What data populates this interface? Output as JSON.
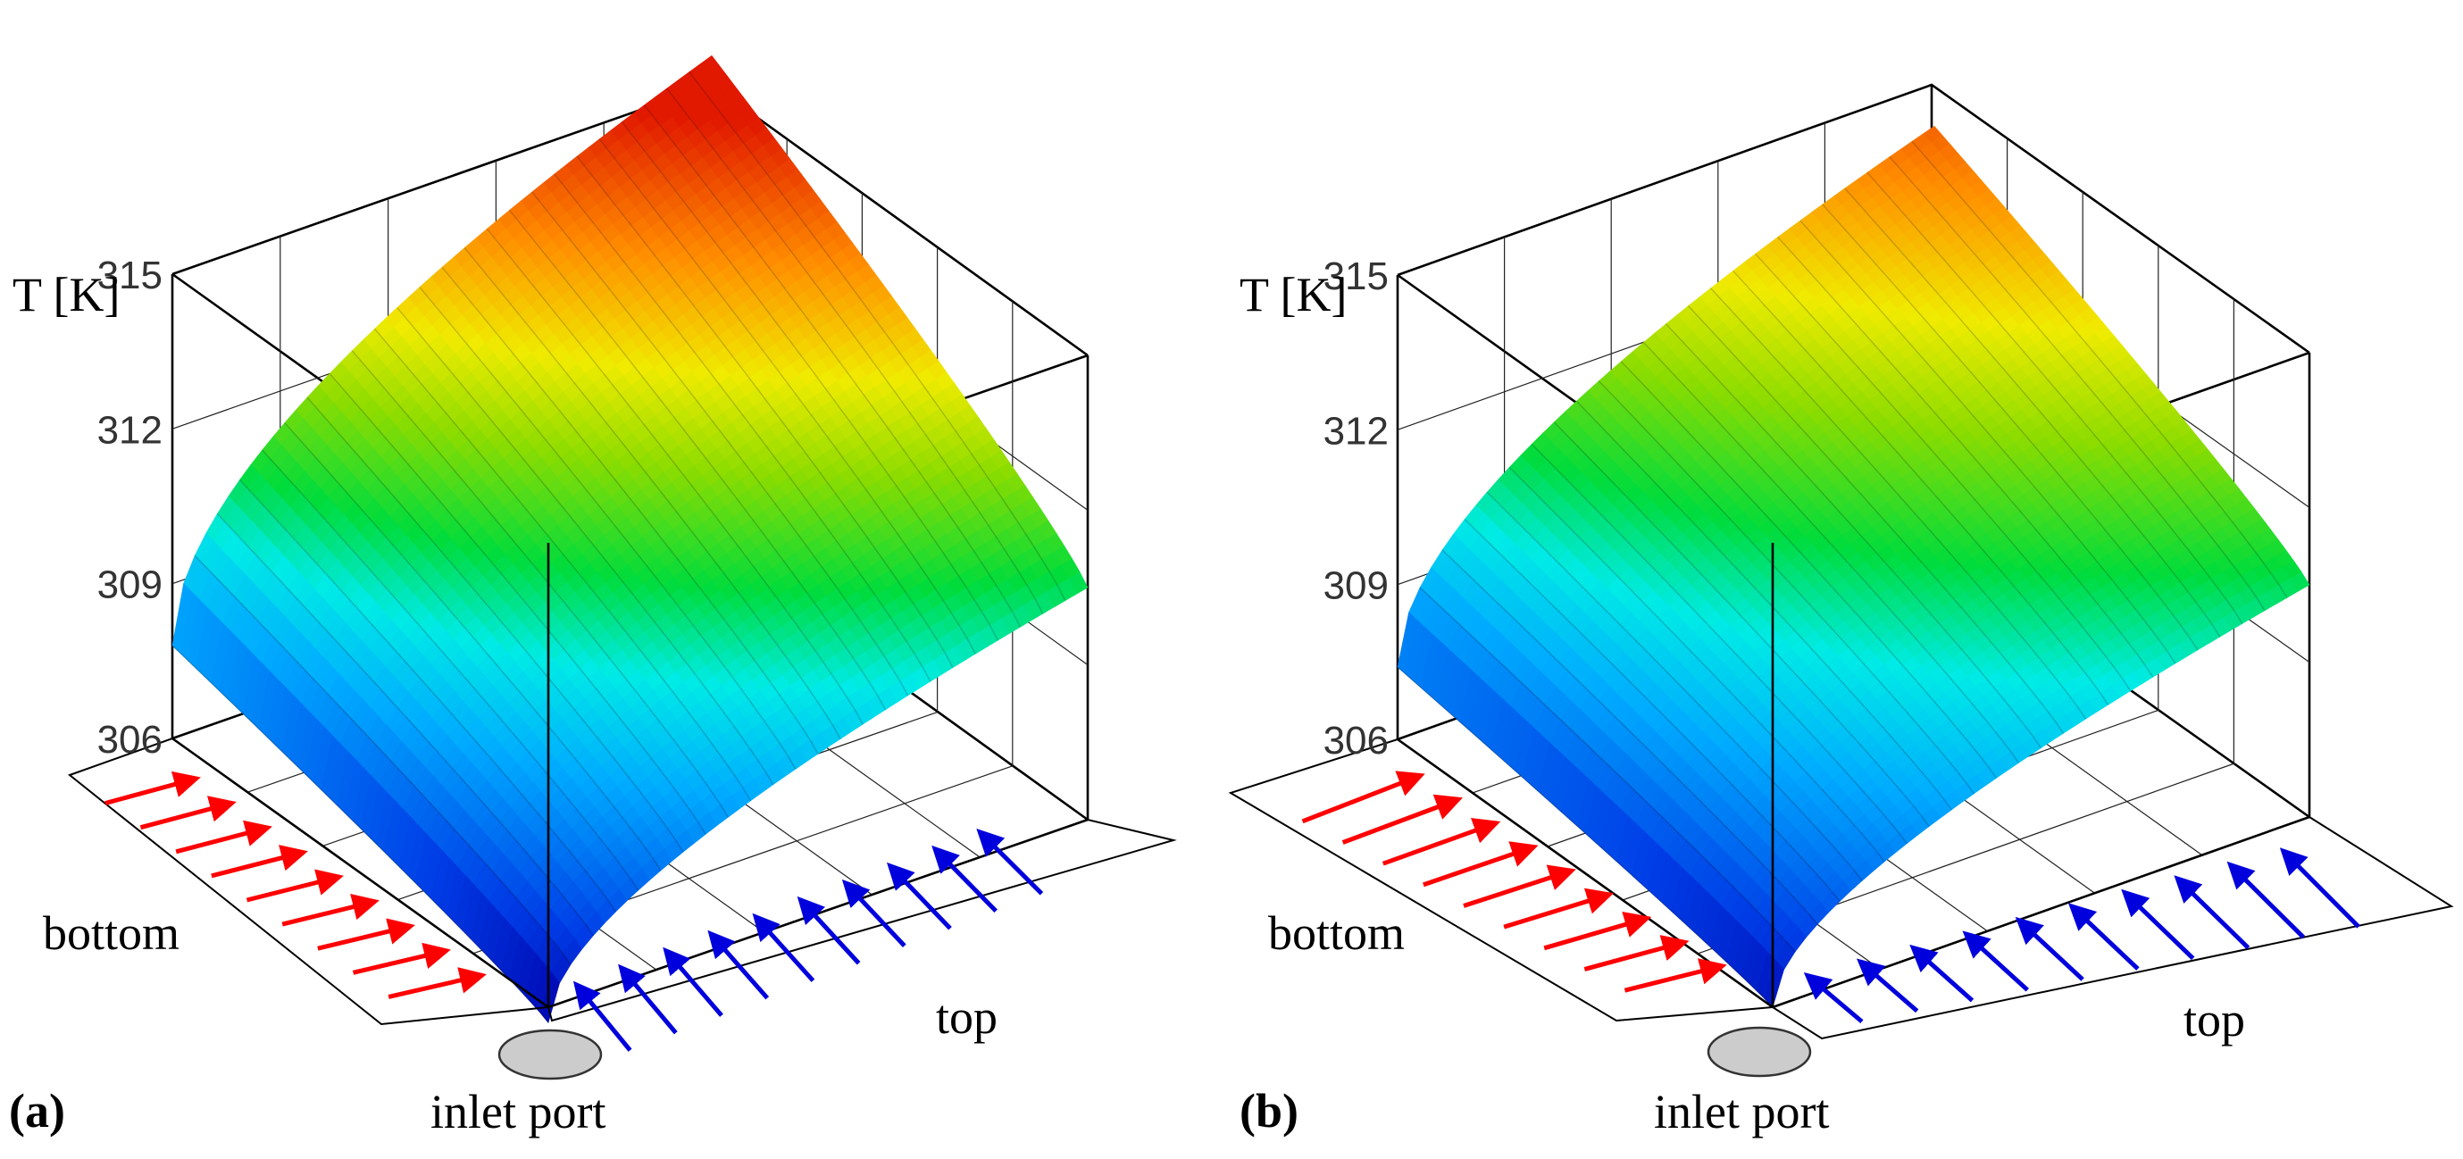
{
  "chart_data": [
    {
      "type": "surface3d",
      "panel_label": "(a)",
      "zlabel": "T [K]",
      "z_ticks": [
        306,
        309,
        312,
        315
      ],
      "zlim": [
        306,
        315
      ],
      "axis_labels": {
        "left": "bottom",
        "right": "top",
        "corner": "inlet port"
      },
      "grid": true,
      "colormap": "jet",
      "corner_values": {
        "near": 305.7,
        "left": 307.8,
        "right": 310.5,
        "far": 315.6
      },
      "arrows": {
        "bottom_color": "#ff0000",
        "top_color": "#0000dd",
        "bottom_count": 9,
        "top_count": 10
      }
    },
    {
      "type": "surface3d",
      "panel_label": "(b)",
      "zlabel": "T [K]",
      "z_ticks": [
        306,
        309,
        312,
        315
      ],
      "zlim": [
        306,
        315
      ],
      "axis_labels": {
        "left": "bottom",
        "right": "top",
        "corner": "inlet port"
      },
      "grid": true,
      "colormap": "jet",
      "corner_values": {
        "near": 306.0,
        "left": 307.4,
        "right": 310.5,
        "far": 314.2
      },
      "arrows": {
        "bottom_color": "#ff0000",
        "top_color": "#0000dd",
        "bottom_count": 9,
        "top_count": 10
      }
    }
  ]
}
